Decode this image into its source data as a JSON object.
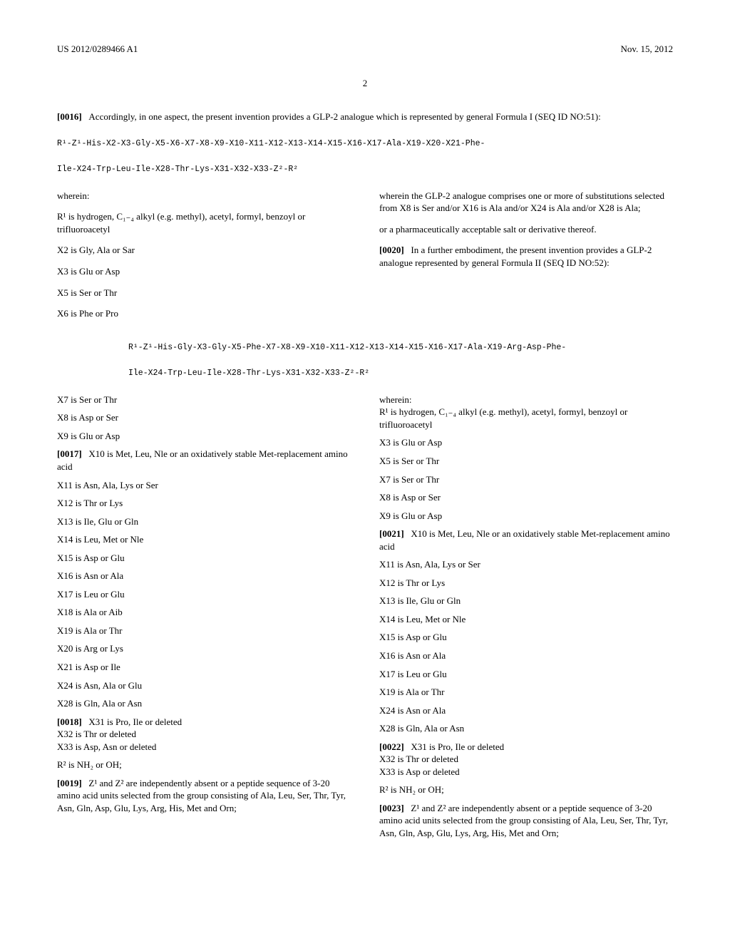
{
  "header": {
    "pub_no": "US 2012/0289466 A1",
    "pub_date": "Nov. 15, 2012",
    "page_num": "2"
  },
  "intro_para": {
    "ref": "[0016]",
    "text": "Accordingly, in one aspect, the present invention provides a GLP-2 analogue which is represented by general Formula I (SEQ ID NO:51):"
  },
  "seq1_line1": "R¹-Z¹-His-X2-X3-Gly-X5-X6-X7-X8-X9-X10-X11-X12-X13-X14-X15-X16-X17-Ala-X19-X20-X21-Phe-",
  "seq1_line2": "Ile-X24-Trp-Leu-Ile-X28-Thr-Lys-X31-X32-X33-Z²-R²",
  "left_block1": {
    "wherein": "wherein:",
    "r1": "R¹ is hydrogen, C₁₋₄ alkyl (e.g. methyl), acetyl, formyl, benzoyl or trifluoroacetyl",
    "x2": "X2 is Gly, Ala or Sar",
    "x3": "X3 is Glu or Asp",
    "x5": "X5 is Ser or Thr",
    "x6": "X6 is Phe or Pro"
  },
  "right_block1": {
    "p1": "wherein the GLP-2 analogue comprises one or more of substitutions selected from X8 is Ser and/or X16 is Ala and/or X24 is Ala and/or X28 is Ala;",
    "p2": "or a pharmaceutically acceptable salt or derivative thereof.",
    "ref": "[0020]",
    "p3": "In a further embodiment, the present invention provides a GLP-2 analogue represented by general Formula II (SEQ ID NO:52):"
  },
  "seq2_line1": "R¹-Z¹-His-Gly-X3-Gly-X5-Phe-X7-X8-X9-X10-X11-X12-X13-X14-X15-X16-X17-Ala-X19-Arg-Asp-Phe-",
  "seq2_line2": "Ile-X24-Trp-Leu-Ile-X28-Thr-Lys-X31-X32-X33-Z²-R²",
  "left_block2": {
    "x7": "X7 is Ser or Thr",
    "x8": "X8 is Asp or Ser",
    "x9": "X9 is Glu or Asp",
    "x10_ref": "[0017]",
    "x10": "X10 is Met, Leu, Nle or an oxidatively stable Met-replacement amino acid",
    "x11": "X11 is Asn, Ala, Lys or Ser",
    "x12": "X12 is Thr or Lys",
    "x13": "X13 is Ile, Glu or Gln",
    "x14": "X14 is Leu, Met or Nle",
    "x15": "X15 is Asp or Glu",
    "x16": "X16 is Asn or Ala",
    "x17": "X17 is Leu or Glu",
    "x18": "X18 is Ala or Aib",
    "x19": "X19 is Ala or Thr",
    "x20": "X20 is Arg or Lys",
    "x21": "X21 is Asp or Ile",
    "x24": "X24 is Asn, Ala or Glu",
    "x28": "X28 is Gln, Ala or Asn",
    "x31_ref": "[0018]",
    "x31": "X31 is Pro, Ile or deleted",
    "x32": "X32 is Thr or deleted",
    "x33": "X33 is Asp, Asn or deleted",
    "r2": "R² is NH₂ or OH;",
    "z_ref": "[0019]",
    "z": "Z¹ and Z² are independently absent or a peptide sequence of 3-20 amino acid units selected from the group consisting of Ala, Leu, Ser, Thr, Tyr, Asn, Gln, Asp, Glu, Lys, Arg, His, Met and Orn;"
  },
  "right_block2": {
    "wherein": "wherein:",
    "r1": "R¹ is hydrogen, C₁₋₄ alkyl (e.g. methyl), acetyl, formyl, benzoyl or trifluoroacetyl",
    "x3": "X3 is Glu or Asp",
    "x5": "X5 is Ser or Thr",
    "x7": "X7 is Ser or Thr",
    "x8": "X8 is Asp or Ser",
    "x9": "X9 is Glu or Asp",
    "x10_ref": "[0021]",
    "x10": "X10 is Met, Leu, Nle or an oxidatively stable Met-replacement amino acid",
    "x11": "X11 is Asn, Ala, Lys or Ser",
    "x12": "X12 is Thr or Lys",
    "x13": "X13 is Ile, Glu or Gln",
    "x14": "X14 is Leu, Met or Nle",
    "x15": "X15 is Asp or Glu",
    "x16": "X16 is Asn or Ala",
    "x17": "X17 is Leu or Glu",
    "x19": "X19 is Ala or Thr",
    "x24": "X24 is Asn or Ala",
    "x28": "X28 is Gln, Ala or Asn",
    "x31_ref": "[0022]",
    "x31": "X31 is Pro, Ile or deleted",
    "x32": "X32 is Thr or deleted",
    "x33": "X33 is Asp or deleted",
    "r2": "R² is NH₂ or OH;",
    "z_ref": "[0023]",
    "z": "Z¹ and Z² are independently absent or a peptide sequence of 3-20 amino acid units selected from the group consisting of Ala, Leu, Ser, Thr, Tyr, Asn, Gln, Asp, Glu, Lys, Arg, His, Met and Orn;"
  }
}
